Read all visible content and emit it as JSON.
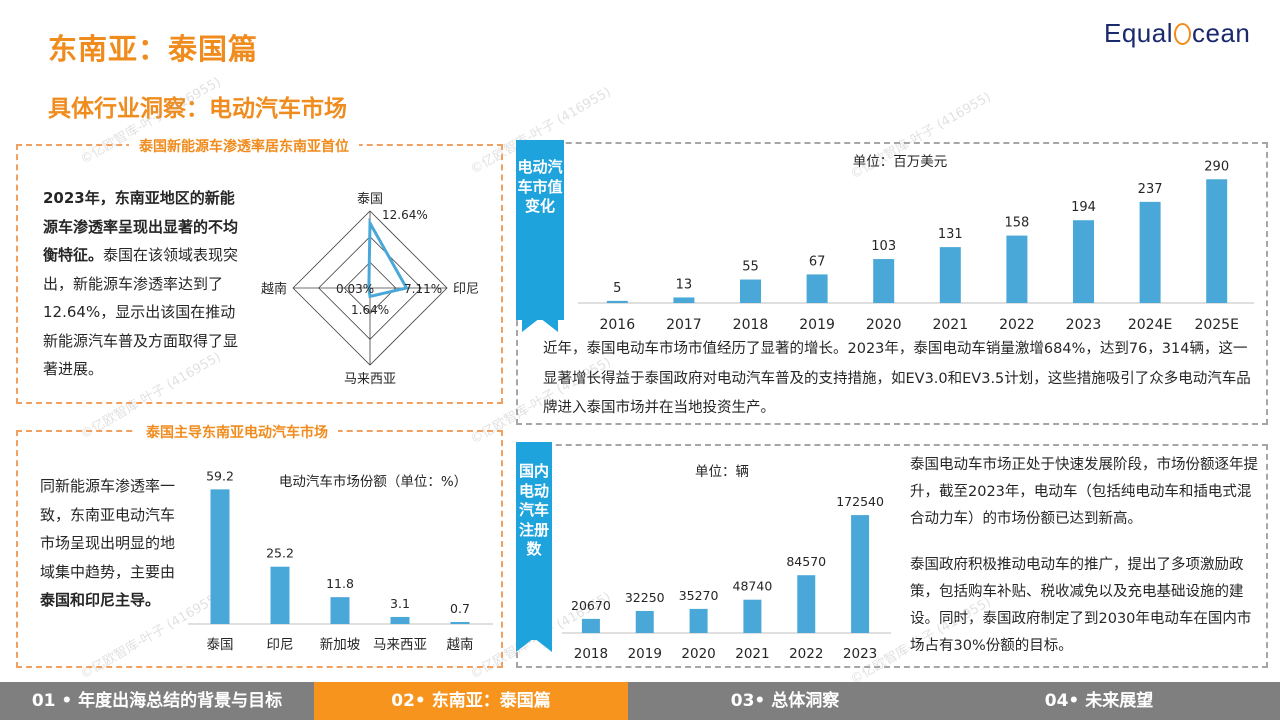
{
  "header": {
    "title": "东南亚：泰国篇",
    "subtitle": "具体行业洞察：电动汽车市场",
    "logo_left": "Equal",
    "logo_right": "cean"
  },
  "watermark": "©亿欧智库-叶子 (416955)",
  "panel_penetration": {
    "title": "泰国新能源车渗透率居东南亚首位",
    "text_bold": "2023年，东南亚地区的新能源车渗透率呈现出显著的不均衡特征。",
    "text_rest": "泰国在该领域表现突出，新能源车渗透率达到了12.64%，显示出该国在推动新能源汽车普及方面取得了显著进展。",
    "radar": {
      "axes": [
        "泰国",
        "印尼",
        "马来西亚",
        "越南"
      ],
      "values": [
        12.64,
        7.11,
        1.64,
        0.03
      ],
      "value_labels": [
        "12.64%",
        "7.11%",
        "1.64%",
        "0.03%"
      ],
      "max": 15
    }
  },
  "panel_market_share": {
    "title": "泰国主导东南亚电动汽车市场",
    "text_pre": "同新能源车渗透率一致，东南亚电动汽车市场呈现出明显的地域集中趋势，主要由",
    "text_bold": "泰国和印尼主导。",
    "chart_data": {
      "type": "bar",
      "title": "电动汽车市场份额（单位：%）",
      "categories": [
        "泰国",
        "印尼",
        "新加坡",
        "马来西亚",
        "越南"
      ],
      "values": [
        59.2,
        25.2,
        11.8,
        3.1,
        0.7
      ],
      "value_labels": [
        "59.2",
        "25.2",
        "11.8",
        "3.1",
        "0.7"
      ],
      "ylim": [
        0,
        62
      ],
      "color": "#4aa8d8"
    }
  },
  "panel_market_value": {
    "ribbon": "电动汽车市值变化",
    "chart_data": {
      "type": "bar",
      "title": "单位：百万美元",
      "categories": [
        "2016",
        "2017",
        "2018",
        "2019",
        "2020",
        "2021",
        "2022",
        "2023",
        "2024E",
        "2025E"
      ],
      "values": [
        5,
        13,
        55,
        67,
        103,
        131,
        158,
        194,
        237,
        290
      ],
      "value_labels": [
        "5",
        "13",
        "55",
        "67",
        "103",
        "131",
        "158",
        "194",
        "237",
        "290"
      ],
      "ylim": [
        0,
        300
      ],
      "color": "#4aa8d8"
    },
    "text": "近年，泰国电动车市场市值经历了显著的增长。2023年，泰国电动车销量激增684%，达到76，314辆，这一显著增长得益于泰国政府对电动汽车普及的支持措施，如EV3.0和EV3.5计划，这些措施吸引了众多电动汽车品牌进入泰国市场并在当地投资生产。"
  },
  "panel_registration": {
    "ribbon": "国内电动汽车注册数",
    "chart_data": {
      "type": "bar",
      "title": "单位：辆",
      "categories": [
        "2018",
        "2019",
        "2020",
        "2021",
        "2022",
        "2023"
      ],
      "values": [
        20670,
        32250,
        35270,
        48740,
        84570,
        172540
      ],
      "value_labels": [
        "20670",
        "32250",
        "35270",
        "48740",
        "84570",
        "172540"
      ],
      "ylim": [
        0,
        180000
      ],
      "color": "#4aa8d8"
    },
    "text1": "泰国电动车市场正处于快速发展阶段，市场份额逐年提升，截至2023年，电动车（包括纯电动车和插电式混合动力车）的市场份额已达到新高。",
    "text2": "泰国政府积极推动电动车的推广，提出了多项激励政策，包括购车补贴、税收减免以及充电基础设施的建设。同时，泰国政府制定了到2030年电动车在国内市场占有30%份额的目标。"
  },
  "footer": {
    "tabs": [
      "01 • 年度出海总结的背景与目标",
      "02• 东南亚：泰国篇",
      "03• 总体洞察",
      "04• 未来展望"
    ],
    "active_index": 1
  }
}
